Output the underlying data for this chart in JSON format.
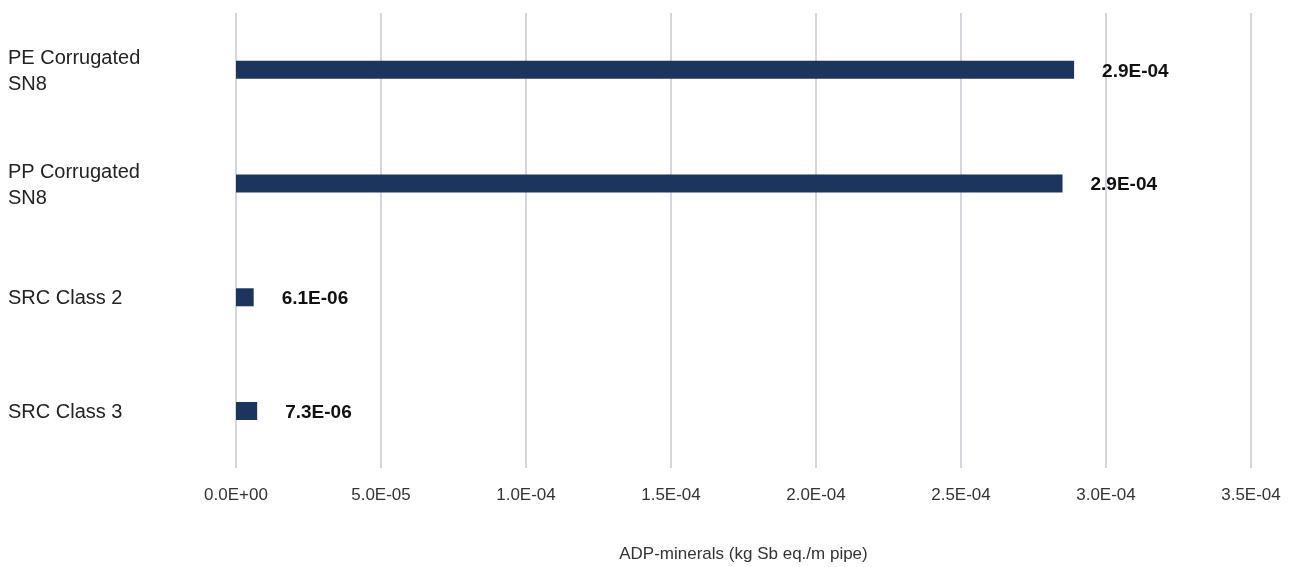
{
  "chart_data": {
    "type": "bar",
    "orientation": "horizontal",
    "xlabel": "ADP-minerals (kg Sb eq./m pipe)",
    "categories": [
      "PE Corrugated SN8",
      "PP Corrugated SN8",
      "SRC Class 2",
      "SRC Class 3"
    ],
    "values": [
      0.000289,
      0.000285,
      6.1e-06,
      7.3e-06
    ],
    "value_labels": [
      "2.9E-04",
      "2.9E-04",
      "6.1E-06",
      "7.3E-06"
    ],
    "color": "#1c355e",
    "xlim": [
      0,
      0.00035
    ],
    "xticks": [
      {
        "value": 0,
        "label": "0.0E+00"
      },
      {
        "value": 5e-05,
        "label": "5.0E-05"
      },
      {
        "value": 0.0001,
        "label": "1.0E-04"
      },
      {
        "value": 0.00015,
        "label": "1.5E-04"
      },
      {
        "value": 0.0002,
        "label": "2.0E-04"
      },
      {
        "value": 0.00025,
        "label": "2.5E-04"
      },
      {
        "value": 0.0003,
        "label": "3.0E-04"
      },
      {
        "value": 0.00035,
        "label": "3.5E-04"
      }
    ],
    "grid": "x"
  }
}
